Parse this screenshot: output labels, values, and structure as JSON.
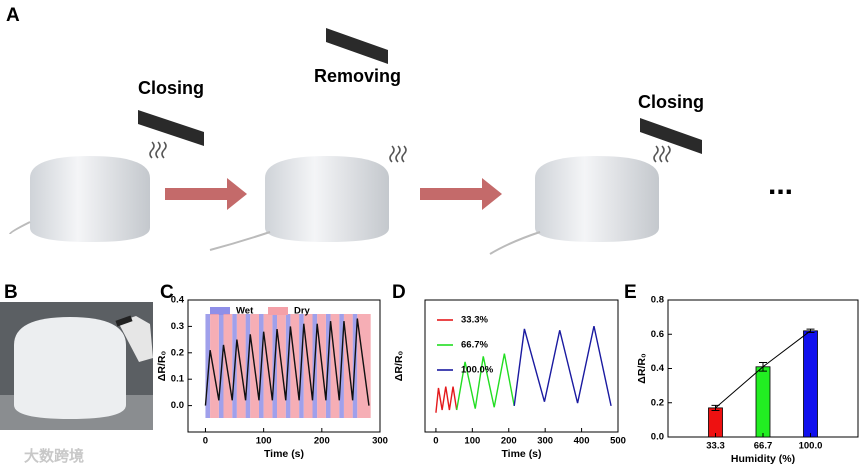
{
  "panels": {
    "a": "A",
    "b": "B",
    "c": "C",
    "d": "D",
    "e": "E"
  },
  "illustration": {
    "step1": "Closing",
    "step2": "Removing",
    "step3": "Closing",
    "more": "..."
  },
  "watermark": "大数跨境",
  "chart_data": [
    {
      "type": "line",
      "x_label": "Time (s)",
      "y_label": "ΔR/R₀",
      "xlim": [
        -30,
        300
      ],
      "xticks": [
        0,
        100,
        200,
        300
      ],
      "ylim": [
        -0.1,
        0.4
      ],
      "yticks": [
        {
          "value": 0,
          "label": "0.0"
        },
        {
          "value": 0.1,
          "label": "0.1"
        },
        {
          "value": 0.2,
          "label": "0.2"
        },
        {
          "value": 0.3,
          "label": "0.3"
        },
        {
          "value": 0.4,
          "label": "0.4"
        }
      ],
      "shading": [
        {
          "name": "Wet",
          "color": "#8f8fe8",
          "intervals": [
            [
              0,
              8
            ],
            [
              23,
              31
            ],
            [
              46,
              54
            ],
            [
              69,
              77
            ],
            [
              92,
              100
            ],
            [
              115,
              123
            ],
            [
              138,
              146
            ],
            [
              161,
              169
            ],
            [
              184,
              192
            ],
            [
              207,
              215
            ],
            [
              230,
              238
            ],
            [
              253,
              261
            ]
          ]
        },
        {
          "name": "Dry",
          "color": "#f4a0a8",
          "intervals": [
            [
              8,
              23
            ],
            [
              31,
              46
            ],
            [
              54,
              69
            ],
            [
              77,
              92
            ],
            [
              100,
              115
            ],
            [
              123,
              138
            ],
            [
              146,
              161
            ],
            [
              169,
              184
            ],
            [
              192,
              207
            ],
            [
              215,
              230
            ],
            [
              238,
              253
            ],
            [
              261,
              284
            ]
          ]
        }
      ],
      "series": [
        {
          "color": "#111111",
          "x": [
            0,
            8,
            23,
            31,
            46,
            54,
            69,
            77,
            92,
            100,
            115,
            123,
            138,
            146,
            161,
            169,
            184,
            192,
            207,
            215,
            230,
            238,
            253,
            261,
            281
          ],
          "values": [
            0,
            0.21,
            0.02,
            0.23,
            0.02,
            0.25,
            0.02,
            0.27,
            0.02,
            0.28,
            0.02,
            0.29,
            0.02,
            0.3,
            0.02,
            0.31,
            0.02,
            0.31,
            0.02,
            0.32,
            0.02,
            0.32,
            0.02,
            0.33,
            0.0
          ]
        }
      ]
    },
    {
      "type": "line",
      "x_label": "Time (s)",
      "y_label": "ΔR/R₀",
      "xlim": [
        -30,
        500
      ],
      "xticks": [
        0,
        100,
        200,
        300,
        400,
        500
      ],
      "ylim": [
        -0.14,
        0.82
      ],
      "series": [
        {
          "name": "33.3%",
          "color": "#e41a1c",
          "x": [
            0,
            7,
            17,
            27,
            37,
            47,
            57
          ],
          "values": [
            0,
            0.18,
            0.02,
            0.19,
            0.02,
            0.19,
            0.02
          ]
        },
        {
          "name": "66.7%",
          "color": "#22dd22",
          "x": [
            57,
            80,
            108,
            130,
            160,
            188,
            215
          ],
          "values": [
            0.02,
            0.37,
            0.03,
            0.41,
            0.04,
            0.43,
            0.05
          ]
        },
        {
          "name": "100.0%",
          "color": "#1a1aa0",
          "x": [
            215,
            243,
            298,
            340,
            389,
            434,
            481
          ],
          "values": [
            0.05,
            0.61,
            0.08,
            0.6,
            0.07,
            0.63,
            0.05
          ]
        }
      ]
    },
    {
      "type": "bar",
      "x_label": "Humidity (%)",
      "y_label": "ΔR/R₀",
      "categories": [
        "33.3",
        "66.7",
        "100.0"
      ],
      "values": [
        0.17,
        0.41,
        0.62
      ],
      "errors": [
        0.015,
        0.025,
        0.01
      ],
      "colors": [
        "#ee1111",
        "#22ee22",
        "#1111ee"
      ],
      "ylim": [
        0,
        0.8
      ],
      "yticks": [
        {
          "value": 0,
          "label": "0.0"
        },
        {
          "value": 0.2,
          "label": "0.2"
        },
        {
          "value": 0.4,
          "label": "0.4"
        },
        {
          "value": 0.6,
          "label": "0.6"
        },
        {
          "value": 0.8,
          "label": "0.8"
        }
      ]
    }
  ]
}
